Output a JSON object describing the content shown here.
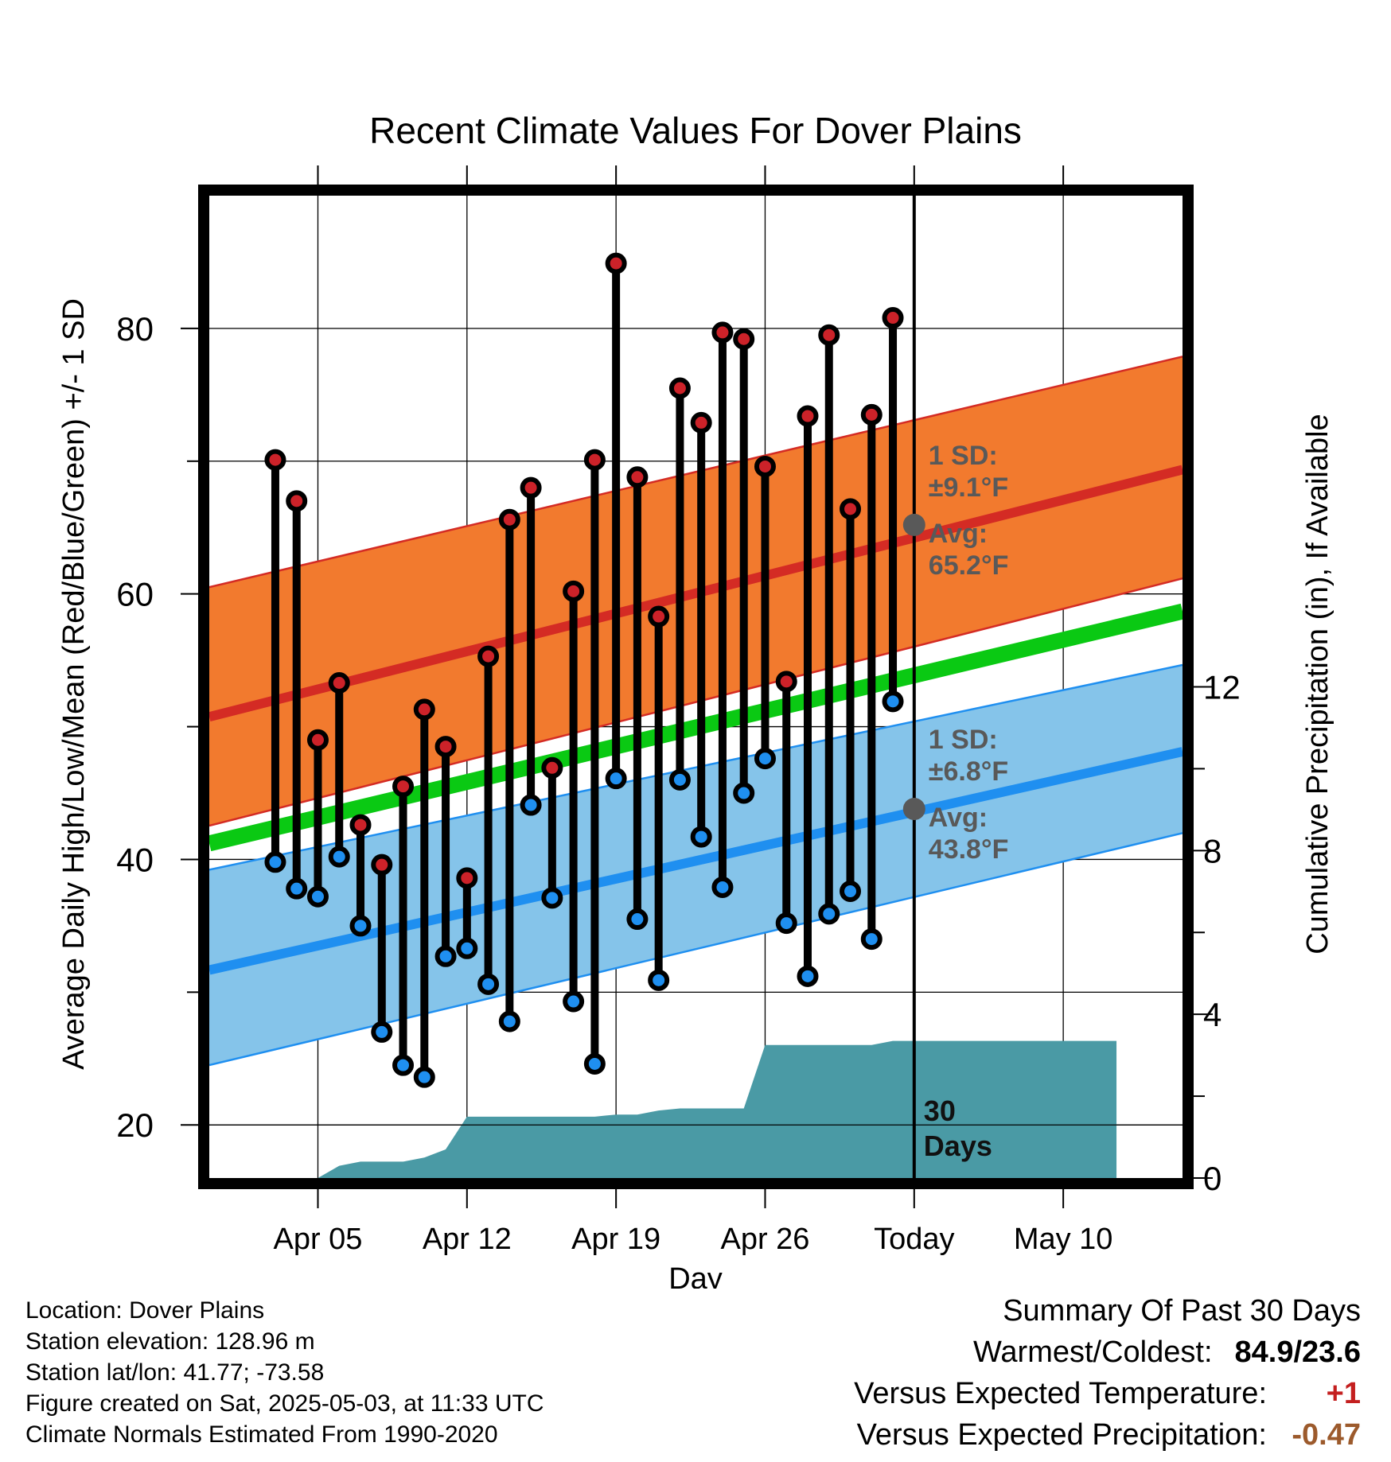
{
  "chart_data": {
    "type": "line",
    "title": "Recent Climate Values For Dover Plains",
    "xlabel": "Day",
    "ylabel_left": "Average Daily High/Low/Mean (Red/Blue/Green) +/- 1 SD",
    "ylabel_right": "Cumulative Precipitation (in), If Available",
    "x_range_days": [
      -33.1,
      12.6
    ],
    "ylim_left": [
      16,
      90
    ],
    "ylim_right": [
      0,
      24
    ],
    "left_ticks": [
      20,
      40,
      60,
      80
    ],
    "right_ticks": [
      0,
      4,
      8,
      12
    ],
    "x_ticks": [
      {
        "day": -28,
        "label": "Apr 05"
      },
      {
        "day": -21,
        "label": "Apr 12"
      },
      {
        "day": -14,
        "label": "Apr 19"
      },
      {
        "day": -7,
        "label": "Apr 26"
      },
      {
        "day": 0,
        "label": "Today"
      },
      {
        "day": 7,
        "label": "May 10"
      }
    ],
    "today_label": "30 Days",
    "daily": {
      "day": [
        -30,
        -29,
        -28,
        -27,
        -26,
        -25,
        -24,
        -23,
        -22,
        -21,
        -20,
        -19,
        -18,
        -17,
        -16,
        -15,
        -14,
        -13,
        -12,
        -11,
        -10,
        -9,
        -8,
        -7,
        -6,
        -5,
        -4,
        -3,
        -2,
        -1
      ],
      "high": [
        70.1,
        67.0,
        49.0,
        53.3,
        42.6,
        39.6,
        45.5,
        51.3,
        48.5,
        38.6,
        55.3,
        65.6,
        68.0,
        46.9,
        60.2,
        70.1,
        84.9,
        68.8,
        58.3,
        75.5,
        72.9,
        79.7,
        79.2,
        69.6,
        53.4,
        73.4,
        79.5,
        66.4,
        73.5,
        80.8
      ],
      "low": [
        39.8,
        37.8,
        37.2,
        40.2,
        35.0,
        27.0,
        24.5,
        23.6,
        32.7,
        33.3,
        30.6,
        27.8,
        44.1,
        37.1,
        29.3,
        24.6,
        46.1,
        35.5,
        30.9,
        46.0,
        41.7,
        37.9,
        45.0,
        47.6,
        35.2,
        31.2,
        35.9,
        37.6,
        34.0,
        51.9
      ]
    },
    "normals": {
      "day": [
        -30.5,
        9.5
      ],
      "avg_high": [
        51.8,
        68.1
      ],
      "avg_low": [
        32.6,
        47.0
      ],
      "avg_mean": [
        42.2,
        57.5
      ],
      "high_sd_band": [
        [
          43.6,
          59.9
        ],
        [
          61.5,
          76.7
        ]
      ],
      "low_sd_band": [
        [
          25.5,
          40.8
        ],
        [
          40.1,
          53.6
        ]
      ]
    },
    "precip": {
      "day": [
        -30.5,
        -28,
        -27,
        -26,
        -25,
        -24,
        -23,
        -22,
        -21,
        -20,
        -19,
        -18,
        -17,
        -16,
        -15,
        -14,
        -13,
        -12,
        -11,
        -10,
        -9,
        -8,
        -7,
        -6,
        -5,
        -4,
        -3,
        -2,
        -1,
        0,
        9.5
      ],
      "cum": [
        0,
        0,
        0.3,
        0.4,
        0.4,
        0.4,
        0.5,
        0.7,
        1.5,
        1.5,
        1.5,
        1.5,
        1.5,
        1.5,
        1.5,
        1.55,
        1.55,
        1.65,
        1.7,
        1.7,
        1.7,
        1.7,
        3.25,
        3.25,
        3.25,
        3.25,
        3.25,
        3.25,
        3.35,
        3.35,
        3.35
      ]
    },
    "annotations": [
      {
        "sd_label": "1 SD:",
        "sd_value": "±9.1°F",
        "avg_label": "Avg:",
        "avg_value": "65.2°F",
        "avg": 65.2
      },
      {
        "sd_label": "1 SD:",
        "sd_value": "±6.8°F",
        "avg_label": "Avg:",
        "avg_value": "43.8°F",
        "avg": 43.8
      }
    ],
    "grid": true,
    "colors": {
      "high_band": "#f27a2e",
      "high_line": "#d42b24",
      "low_band": "#85c4ea",
      "low_line": "#1f8ff0",
      "mean_line": "#0ac913",
      "precip_fill": "#4a9aa5",
      "high_marker": "#cc2229",
      "low_marker": "#1f8ff0",
      "annotation": "#595959"
    }
  },
  "footer": {
    "location": "Location: Dover Plains",
    "elevation": "Station elevation: 128.96 m",
    "latlon": "Station lat/lon: 41.77; -73.58",
    "created": "Figure created on Sat, 2025-05-03, at 11:33 UTC",
    "normals": "Climate Normals Estimated From 1990-2020"
  },
  "summary": {
    "heading": "Summary Of Past 30 Days",
    "warm_cold_label": "Warmest/Coldest:",
    "warm_cold_value": "84.9/23.6",
    "temp_label": "Versus Expected Temperature:",
    "temp_value": "+1",
    "temp_color": "#c41f1f",
    "precip_label": "Versus Expected Precipitation:",
    "precip_value": "-0.47",
    "precip_color": "#9c5a2c"
  }
}
